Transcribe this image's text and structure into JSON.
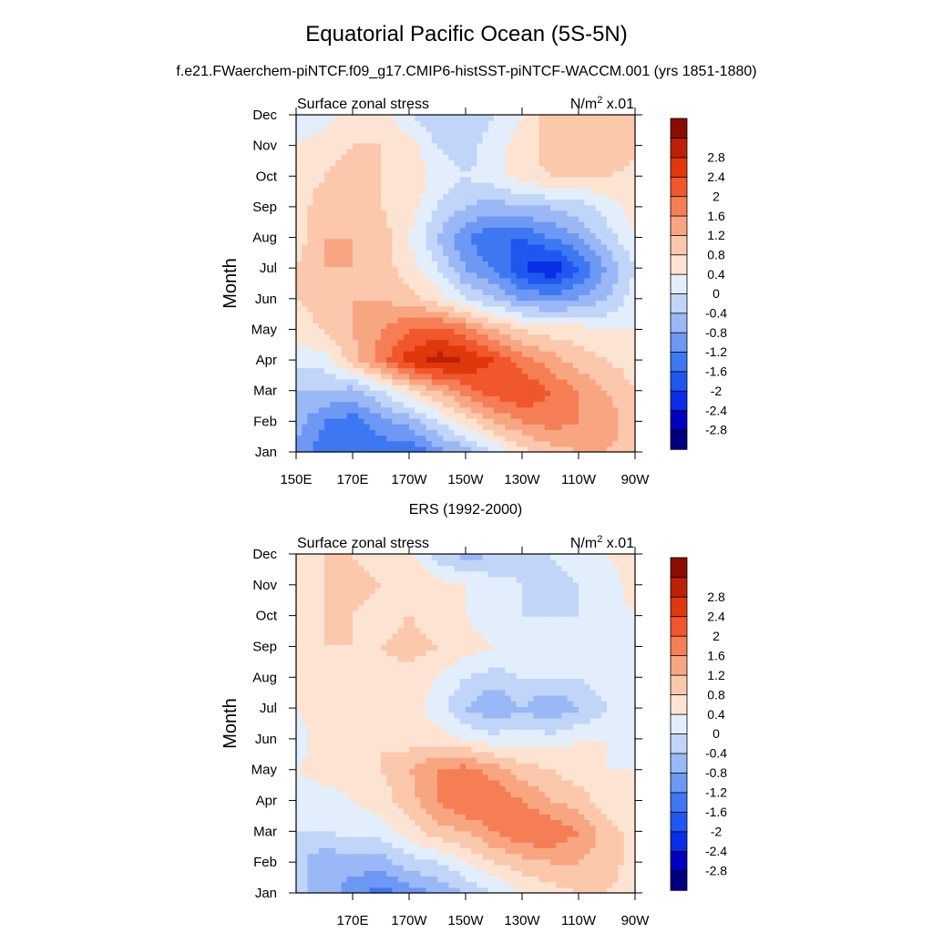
{
  "header": {
    "title": "Equatorial Pacific Ocean (5S-5N)",
    "subtitle": "f.e21.FWaerchem-piNTCF.f09_g17.CMIP6-histSST-piNTCF-WACCM.001 (yrs 1851-1880)"
  },
  "colors": {
    "levels": [
      -3.2,
      -2.8,
      -2.4,
      -2.0,
      -1.6,
      -1.2,
      -0.8,
      -0.4,
      0.0,
      0.4,
      0.8,
      1.2,
      1.6,
      2.0,
      2.4,
      2.8
    ],
    "palette": [
      "#00007f",
      "#0000c0",
      "#0a2ee6",
      "#1f57f0",
      "#3d78f2",
      "#6d98f4",
      "#9ab8f6",
      "#c0d5f8",
      "#e2eefb",
      "#fde4d2",
      "#fbc8ac",
      "#f8a682",
      "#f57e55",
      "#f0572c",
      "#e0380d",
      "#bc2106",
      "#8b0d00"
    ]
  },
  "chart_data": [
    {
      "type": "heatmap",
      "panel_title": "",
      "left_label": "Surface zonal stress",
      "right_label_base": "N/m",
      "right_label_exp": "2",
      "right_label_suffix": " x.01",
      "ylabel": "Month",
      "x_tick_labels": [
        "150E",
        "170E",
        "170W",
        "150W",
        "130W",
        "110W",
        "90W"
      ],
      "y_tick_labels": [
        "Jan",
        "Feb",
        "Mar",
        "Apr",
        "May",
        "Jun",
        "Jul",
        "Aug",
        "Sep",
        "Oct",
        "Nov",
        "Dec"
      ],
      "x_range_deg_east": [
        150,
        270
      ],
      "y_range_month": [
        1,
        12
      ],
      "colorbar_labels": [
        "-2.8",
        "-2.4",
        "-2",
        "-1.6",
        "-1.2",
        "-0.8",
        "-0.4",
        "0",
        "0.4",
        "0.8",
        "1.2",
        "1.6",
        "2",
        "2.4",
        "2.8"
      ],
      "grid_lon": [
        150,
        160,
        170,
        180,
        190,
        200,
        210,
        220,
        230,
        240,
        250,
        260,
        270
      ],
      "grid_month": [
        1,
        2,
        3,
        4,
        5,
        6,
        7,
        8,
        9,
        10,
        11,
        12
      ],
      "values": [
        [
          -1.4,
          -1.8,
          -2.0,
          -1.8,
          -2.0,
          -1.4,
          -1.0,
          -0.4,
          0.2,
          0.6,
          0.8,
          0.8,
          0.6
        ],
        [
          -1.0,
          -1.6,
          -1.8,
          -1.4,
          -1.0,
          -0.4,
          0.2,
          0.8,
          1.2,
          1.4,
          1.2,
          1.0,
          0.6
        ],
        [
          -0.8,
          -0.8,
          -1.0,
          -0.4,
          0.2,
          0.8,
          1.4,
          1.8,
          2.0,
          1.6,
          1.2,
          0.8,
          0.4
        ],
        [
          -0.2,
          -0.2,
          0.6,
          1.4,
          2.2,
          2.6,
          2.4,
          2.0,
          1.4,
          1.0,
          0.6,
          0.4,
          0.2
        ],
        [
          0.2,
          0.4,
          0.8,
          1.2,
          1.6,
          1.8,
          1.4,
          0.8,
          0.4,
          0.2,
          0.2,
          0.0,
          0.0
        ],
        [
          0.4,
          0.6,
          0.8,
          0.8,
          0.6,
          0.2,
          -0.4,
          -0.8,
          -1.2,
          -1.4,
          -1.2,
          -0.8,
          -0.2
        ],
        [
          0.4,
          0.8,
          0.8,
          0.6,
          0.2,
          -0.4,
          -1.2,
          -1.6,
          -2.4,
          -2.8,
          -2.0,
          -1.2,
          -0.4
        ],
        [
          0.2,
          0.8,
          0.8,
          0.6,
          0.0,
          -0.8,
          -1.6,
          -2.0,
          -2.0,
          -1.6,
          -1.2,
          -0.6,
          0.0
        ],
        [
          0.2,
          0.6,
          0.8,
          0.4,
          0.2,
          -0.4,
          -0.8,
          -1.0,
          -0.8,
          -0.8,
          -0.6,
          -0.2,
          0.2
        ],
        [
          0.2,
          0.4,
          0.6,
          0.4,
          0.4,
          -0.2,
          -0.4,
          -0.2,
          0.2,
          0.4,
          0.4,
          0.4,
          0.2
        ],
        [
          0.0,
          0.2,
          0.4,
          0.4,
          0.2,
          -0.4,
          -0.6,
          -0.2,
          0.2,
          0.6,
          0.8,
          0.8,
          0.6
        ],
        [
          -0.2,
          -0.2,
          0.2,
          0.2,
          -0.4,
          -0.8,
          -0.8,
          -0.4,
          0.0,
          0.6,
          0.6,
          0.8,
          0.6
        ]
      ]
    },
    {
      "type": "heatmap",
      "panel_title": "ERS (1992-2000)",
      "left_label": "Surface zonal stress",
      "right_label_base": "N/m",
      "right_label_exp": "2",
      "right_label_suffix": " x.01",
      "ylabel": "Month",
      "x_tick_labels": [
        "170E",
        "170W",
        "150W",
        "130W",
        "110W",
        "90W"
      ],
      "y_tick_labels": [
        "Jan",
        "Feb",
        "Mar",
        "Apr",
        "May",
        "Jun",
        "Jul",
        "Aug",
        "Sep",
        "Oct",
        "Nov",
        "Dec"
      ],
      "x_range_deg_east": [
        150,
        270
      ],
      "y_range_month": [
        1,
        12
      ],
      "colorbar_labels": [
        "-2.8",
        "-2.4",
        "-2",
        "-1.6",
        "-1.2",
        "-0.8",
        "-0.4",
        "0",
        "0.4",
        "0.8",
        "1.2",
        "1.6",
        "2",
        "2.4",
        "2.8"
      ],
      "grid_lon": [
        150,
        160,
        170,
        180,
        190,
        200,
        210,
        220,
        230,
        240,
        250,
        260,
        270
      ],
      "grid_month": [
        1,
        2,
        3,
        4,
        5,
        6,
        7,
        8,
        9,
        10,
        11,
        12
      ],
      "values": [
        [
          -0.6,
          -1.0,
          -1.4,
          -1.8,
          -1.4,
          -1.2,
          -0.8,
          -0.4,
          0.0,
          0.2,
          0.4,
          0.4,
          0.2
        ],
        [
          -0.6,
          -1.2,
          -1.0,
          -1.0,
          -0.6,
          -0.4,
          0.0,
          0.4,
          0.6,
          0.8,
          0.8,
          0.6,
          0.2
        ],
        [
          -0.4,
          -0.4,
          -0.2,
          -0.2,
          0.2,
          0.6,
          0.8,
          1.2,
          1.6,
          1.6,
          1.2,
          0.6,
          0.2
        ],
        [
          -0.2,
          -0.2,
          0.0,
          0.2,
          0.6,
          1.2,
          1.6,
          1.6,
          1.2,
          0.8,
          0.6,
          0.2,
          0.0
        ],
        [
          0.0,
          0.2,
          0.2,
          0.4,
          0.8,
          1.2,
          1.4,
          1.0,
          0.6,
          0.4,
          0.2,
          0.0,
          0.0
        ],
        [
          -0.2,
          0.2,
          0.4,
          0.4,
          0.2,
          0.2,
          0.0,
          -0.2,
          -0.2,
          -0.2,
          0.0,
          0.0,
          -0.2
        ],
        [
          0.0,
          0.2,
          0.2,
          0.2,
          0.2,
          -0.2,
          -0.8,
          -1.2,
          -0.8,
          -1.2,
          -0.8,
          -0.4,
          -0.2
        ],
        [
          0.0,
          0.2,
          0.2,
          0.2,
          0.2,
          0.0,
          -0.4,
          -0.6,
          -0.4,
          -0.4,
          -0.4,
          -0.2,
          0.0
        ],
        [
          0.2,
          0.4,
          0.4,
          0.4,
          0.6,
          0.4,
          0.2,
          0.0,
          0.0,
          -0.2,
          -0.2,
          0.0,
          0.0
        ],
        [
          0.2,
          0.4,
          0.4,
          0.2,
          0.4,
          0.2,
          0.0,
          -0.2,
          -0.4,
          -0.4,
          -0.4,
          -0.2,
          0.0
        ],
        [
          0.4,
          0.4,
          0.6,
          0.4,
          0.4,
          0.2,
          0.0,
          -0.2,
          -0.4,
          -0.6,
          -0.4,
          -0.2,
          0.2
        ],
        [
          0.2,
          0.4,
          0.4,
          0.2,
          0.2,
          -0.6,
          -1.0,
          -0.8,
          -0.6,
          -0.4,
          -0.2,
          0.0,
          0.2
        ]
      ]
    }
  ]
}
